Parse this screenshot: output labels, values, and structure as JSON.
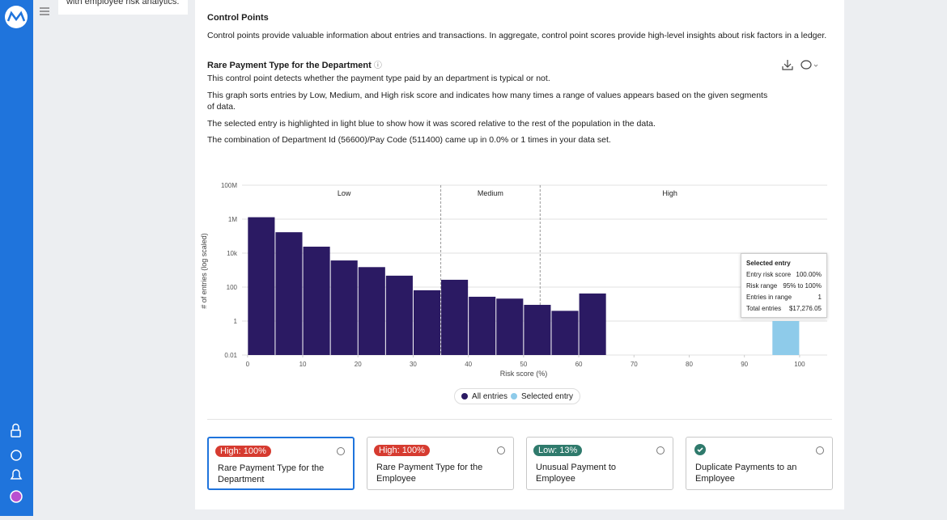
{
  "side_panel": {
    "text": "with employee risk analytics."
  },
  "section": {
    "title": "Control Points",
    "intro": "Control points provide valuable information about entries and transactions. In aggregate, control point scores provide high-level insights about risk factors in a ledger."
  },
  "control_point": {
    "title": "Rare Payment Type for the Department",
    "paragraphs": [
      "This control point detects whether the payment type paid by an department is typical or not.",
      "This graph sorts entries by Low, Medium, and High risk score and indicates how many times a range of values appears based on the given segments of data.",
      "The selected entry is highlighted in light blue to show how it was scored relative to the rest of the population in the data.",
      "The combination of Department Id (56600)/Pay Code (511400) came up in 0.0% or 1 times in your data set."
    ]
  },
  "chart_data": {
    "type": "histogram",
    "x_label": "Risk score (%)",
    "y_label": "# of entries (log scaled)",
    "y_scale": "log",
    "grid": true,
    "xlim": [
      -1,
      105
    ],
    "xticks": [
      0,
      10,
      20,
      30,
      40,
      50,
      60,
      70,
      80,
      90,
      100
    ],
    "ylim": [
      0.01,
      100000000
    ],
    "yticks": [
      0.01,
      1,
      100,
      {
        "value": 10000,
        "label": "10k"
      },
      {
        "value": 1000000,
        "label": "1M"
      },
      {
        "value": 100000000,
        "label": "100M"
      }
    ],
    "regions": [
      {
        "label": "Low",
        "from": 0,
        "to": 35
      },
      {
        "label": "Medium",
        "from": 35,
        "to": 53
      },
      {
        "label": "High",
        "from": 53,
        "to": 105
      }
    ],
    "series": [
      {
        "name": "All entries",
        "color": "#2b1a63",
        "bins": [
          0,
          5,
          10,
          15,
          20,
          25,
          30,
          35,
          40,
          45,
          50,
          55,
          60,
          65
        ],
        "values": [
          1300000,
          170000,
          24000,
          3700,
          1500,
          470,
          65,
          270,
          27,
          21,
          9,
          4,
          42
        ]
      },
      {
        "name": "Selected entry",
        "color": "#8ecbea",
        "bins": [
          95,
          100
        ],
        "values": [
          1
        ]
      }
    ],
    "legend": "bottom",
    "tooltip": {
      "title": "Selected entry",
      "rows": [
        [
          "Entry risk score",
          "100.00%"
        ],
        [
          "Risk range",
          "95% to 100%"
        ],
        [
          "Entries in range",
          "1"
        ],
        [
          "Total entries",
          "$17,276.05"
        ]
      ]
    }
  },
  "cards": [
    {
      "badge": "High: 100%",
      "title": "Rare Payment Type for the Department"
    },
    {
      "badge": "High: 100%",
      "title": "Rare Payment Type for the Employee"
    },
    {
      "badge": "Low: 13%",
      "title": "Unusual Payment to Employee"
    },
    {
      "title": "Duplicate Payments to an Employee"
    }
  ]
}
